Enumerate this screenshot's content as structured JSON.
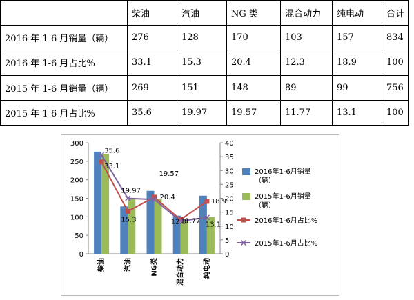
{
  "table": {
    "headers": [
      "",
      "柴油",
      "汽油",
      "NG 类",
      "混合动力",
      "纯电动",
      "合计"
    ],
    "rows": [
      [
        "2016 年 1-6 月销量（辆）",
        "276",
        "128",
        "170",
        "103",
        "157",
        "834"
      ],
      [
        "2016 年 1-6 月占比%",
        "33.1",
        "15.3",
        "20.4",
        "12.3",
        "18.9",
        "100"
      ],
      [
        "2015 年 1-6 月销量（辆）",
        "269",
        "151",
        "148",
        "89",
        "99",
        "756"
      ],
      [
        "2015 年 1-6 月占比%",
        "35.6",
        "19.97",
        "19.57",
        "11.77",
        "13.1",
        "100"
      ]
    ]
  },
  "chart_data": {
    "type": "bar",
    "categories": [
      "柴油",
      "汽油",
      "NG类",
      "混合动力",
      "纯电动"
    ],
    "series": [
      {
        "name": "2016年1-6月销量（辆）",
        "kind": "bar",
        "axis": "left",
        "color": "#4f81bd",
        "values": [
          276,
          128,
          170,
          103,
          157
        ]
      },
      {
        "name": "2015年1-6月销量（辆）",
        "kind": "bar",
        "axis": "left",
        "color": "#9bbb59",
        "values": [
          269,
          151,
          148,
          89,
          99
        ]
      },
      {
        "name": "2016年1-6月占比%",
        "kind": "line",
        "axis": "right",
        "color": "#c0504d",
        "marker": "square",
        "values": [
          33.1,
          15.3,
          20.4,
          12.3,
          18.9
        ]
      },
      {
        "name": "2015年1-6月占比%",
        "kind": "line",
        "axis": "right",
        "color": "#8064a2",
        "marker": "x",
        "values": [
          35.6,
          19.97,
          19.57,
          11.77,
          13.1
        ]
      }
    ],
    "y_left": {
      "min": 0,
      "max": 300,
      "ticks": [
        "0",
        "50",
        "100",
        "150",
        "200",
        "250",
        "300"
      ]
    },
    "y_right": {
      "min": 0,
      "max": 40,
      "ticks": [
        "0",
        "5",
        "10",
        "15",
        "20",
        "25",
        "30",
        "35",
        "40"
      ]
    },
    "data_labels": [
      {
        "category": 0,
        "text": "35.6",
        "series": 3
      },
      {
        "category": 0,
        "text": "33.1",
        "series": 2
      },
      {
        "category": 1,
        "text": "19.97",
        "series": 3
      },
      {
        "category": 1,
        "text": "15.3",
        "series": 2
      },
      {
        "category": 2,
        "text": "19.57",
        "series": 3
      },
      {
        "category": 2,
        "text": "20.4",
        "series": 2
      },
      {
        "category": 3,
        "text": "11.77",
        "series": 3
      },
      {
        "category": 3,
        "text": "12.3",
        "series": 2
      },
      {
        "category": 4,
        "text": "18.9",
        "series": 2
      },
      {
        "category": 4,
        "text": "13.1",
        "series": 3
      }
    ],
    "legend": "right",
    "grid": false
  }
}
